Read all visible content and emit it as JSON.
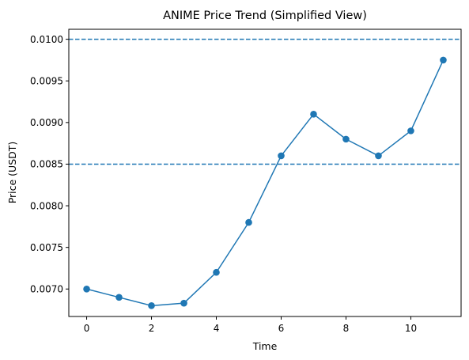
{
  "chart_data": {
    "type": "line",
    "title": "ANIME Price Trend (Simplified View)",
    "xlabel": "Time",
    "ylabel": "Price (USDT)",
    "xlim": [
      -0.55,
      11.55
    ],
    "ylim": [
      0.00667,
      0.01012
    ],
    "xticks": [
      0,
      2,
      4,
      6,
      8,
      10
    ],
    "xtick_labels": [
      "0",
      "2",
      "4",
      "6",
      "8",
      "10"
    ],
    "yticks": [
      0.007,
      0.0075,
      0.008,
      0.0085,
      0.009,
      0.0095,
      0.01
    ],
    "ytick_labels": [
      "0.0070",
      "0.0075",
      "0.0080",
      "0.0085",
      "0.0090",
      "0.0095",
      "0.0100"
    ],
    "grid": false,
    "series": [
      {
        "x": [
          0,
          1,
          2,
          3,
          4,
          5,
          6,
          7,
          8,
          9,
          10,
          11
        ],
        "values": [
          0.007,
          0.0069,
          0.0068,
          0.00683,
          0.0072,
          0.0078,
          0.0086,
          0.0091,
          0.0088,
          0.0086,
          0.0089,
          0.00975
        ],
        "color": "#1f77b4",
        "marker": "circle"
      }
    ],
    "reference_lines": [
      {
        "orientation": "horizontal",
        "y": 0.01,
        "style": "dashed",
        "color": "#1f77b4"
      },
      {
        "orientation": "horizontal",
        "y": 0.0085,
        "style": "dashed",
        "color": "#1f77b4"
      }
    ]
  }
}
